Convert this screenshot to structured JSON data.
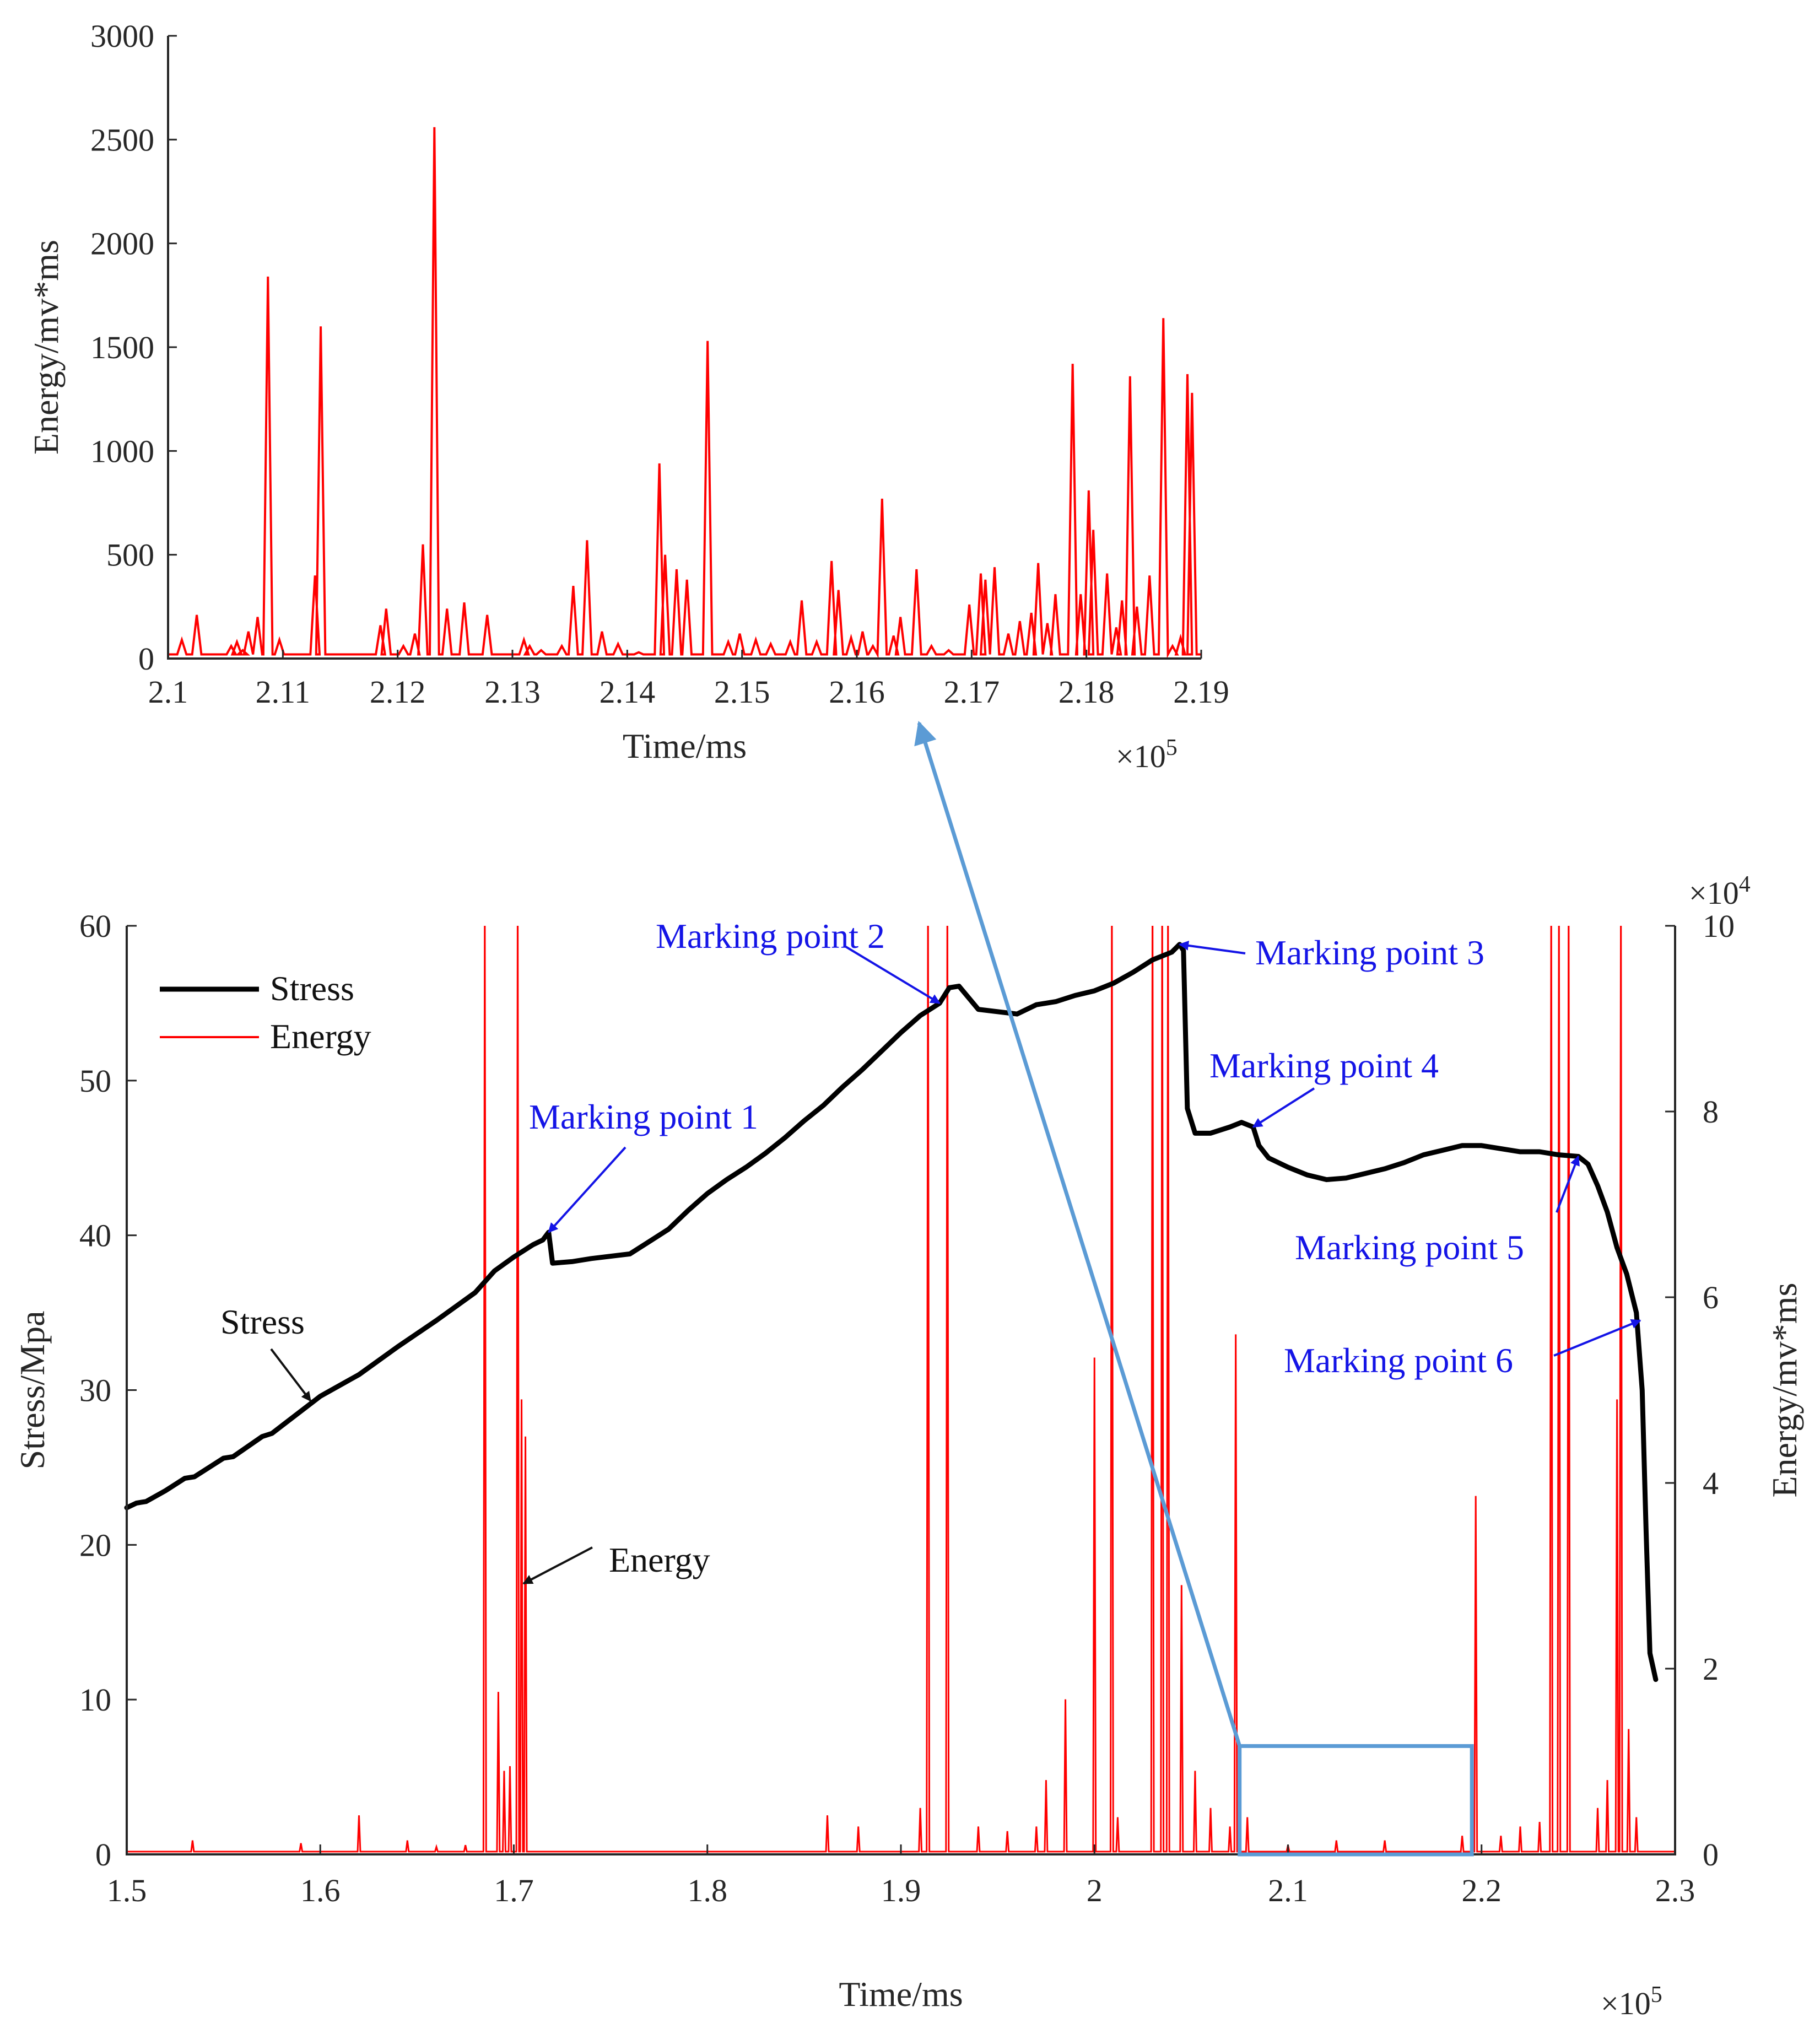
{
  "chart_data": [
    {
      "id": "inset",
      "type": "line",
      "xlabel": "Time/ms",
      "ylabel": "Energy/mv*ms",
      "x_multiplier": "×10",
      "x_multiplier_exp": "5",
      "xlim": [
        2.1,
        2.19
      ],
      "ylim": [
        0,
        3000
      ],
      "x_ticks": [
        "2.1",
        "2.11",
        "2.12",
        "2.13",
        "2.14",
        "2.15",
        "2.16",
        "2.17",
        "2.18",
        "2.19"
      ],
      "y_ticks": [
        "0",
        "500",
        "1000",
        "1500",
        "2000",
        "2500",
        "3000"
      ],
      "series": [
        {
          "name": "Energy",
          "color": "#ff0000",
          "baseline": 20,
          "peaks": [
            [
              2.1012,
              90
            ],
            [
              2.1025,
              210
            ],
            [
              2.1055,
              60
            ],
            [
              2.106,
              80
            ],
            [
              2.1065,
              40
            ],
            [
              2.107,
              130
            ],
            [
              2.1078,
              200
            ],
            [
              2.1087,
              1840
            ],
            [
              2.1097,
              90
            ],
            [
              2.1128,
              400
            ],
            [
              2.1133,
              1600
            ],
            [
              2.1185,
              160
            ],
            [
              2.119,
              240
            ],
            [
              2.1205,
              60
            ],
            [
              2.1215,
              120
            ],
            [
              2.1222,
              550
            ],
            [
              2.1232,
              2560
            ],
            [
              2.1243,
              240
            ],
            [
              2.1258,
              270
            ],
            [
              2.1278,
              210
            ],
            [
              2.131,
              90
            ],
            [
              2.1315,
              60
            ],
            [
              2.1325,
              40
            ],
            [
              2.1343,
              60
            ],
            [
              2.1353,
              350
            ],
            [
              2.1365,
              570
            ],
            [
              2.1378,
              130
            ],
            [
              2.1392,
              70
            ],
            [
              2.141,
              30
            ],
            [
              2.1428,
              940
            ],
            [
              2.1433,
              500
            ],
            [
              2.1443,
              430
            ],
            [
              2.1452,
              380
            ],
            [
              2.147,
              1530
            ],
            [
              2.1488,
              80
            ],
            [
              2.1498,
              120
            ],
            [
              2.1512,
              90
            ],
            [
              2.1525,
              70
            ],
            [
              2.1542,
              80
            ],
            [
              2.1552,
              280
            ],
            [
              2.1565,
              80
            ],
            [
              2.1578,
              470
            ],
            [
              2.1584,
              330
            ],
            [
              2.1595,
              100
            ],
            [
              2.1605,
              130
            ],
            [
              2.1614,
              60
            ],
            [
              2.1622,
              770
            ],
            [
              2.1632,
              110
            ],
            [
              2.1638,
              200
            ],
            [
              2.1652,
              430
            ],
            [
              2.1665,
              60
            ],
            [
              2.168,
              40
            ],
            [
              2.1698,
              260
            ],
            [
              2.1708,
              410
            ],
            [
              2.1712,
              380
            ],
            [
              2.172,
              440
            ],
            [
              2.1732,
              120
            ],
            [
              2.1742,
              180
            ],
            [
              2.1752,
              220
            ],
            [
              2.1758,
              460
            ],
            [
              2.1766,
              170
            ],
            [
              2.1773,
              310
            ],
            [
              2.1788,
              1420
            ],
            [
              2.1795,
              310
            ],
            [
              2.1802,
              810
            ],
            [
              2.1806,
              620
            ],
            [
              2.1818,
              410
            ],
            [
              2.1826,
              150
            ],
            [
              2.1831,
              280
            ],
            [
              2.1838,
              1360
            ],
            [
              2.1844,
              250
            ],
            [
              2.1855,
              400
            ],
            [
              2.1867,
              1640
            ],
            [
              2.1875,
              60
            ],
            [
              2.1882,
              100
            ],
            [
              2.1888,
              1370
            ],
            [
              2.1892,
              1280
            ]
          ]
        }
      ]
    },
    {
      "id": "main",
      "type": "line",
      "xlabel": "Time/ms",
      "ylabel_left": "Stress/Mpa",
      "ylabel_right": "Energy/mv*ms",
      "x_multiplier": "×10",
      "x_multiplier_exp": "5",
      "y_right_multiplier": "×10",
      "y_right_multiplier_exp": "4",
      "xlim": [
        1.5,
        2.3
      ],
      "ylim_left": [
        0,
        60
      ],
      "ylim_right": [
        0,
        10
      ],
      "x_ticks": [
        "1.5",
        "1.6",
        "1.7",
        "1.8",
        "1.9",
        "2",
        "2.1",
        "2.2",
        "2.3"
      ],
      "y_left_ticks": [
        "0",
        "10",
        "20",
        "30",
        "40",
        "50",
        "60"
      ],
      "y_right_ticks": [
        "0",
        "2",
        "4",
        "6",
        "8",
        "10"
      ],
      "legend": [
        {
          "label": "Stress",
          "color": "#000000"
        },
        {
          "label": "Energy",
          "color": "#ff0000"
        }
      ],
      "series": [
        {
          "name": "Stress",
          "color": "#000000",
          "axis": "left",
          "points": [
            [
              1.5,
              22.4
            ],
            [
              1.505,
              22.7
            ],
            [
              1.51,
              22.8
            ],
            [
              1.52,
              23.5
            ],
            [
              1.53,
              24.3
            ],
            [
              1.535,
              24.4
            ],
            [
              1.55,
              25.6
            ],
            [
              1.555,
              25.7
            ],
            [
              1.57,
              27.0
            ],
            [
              1.575,
              27.2
            ],
            [
              1.6,
              29.6
            ],
            [
              1.62,
              31.0
            ],
            [
              1.64,
              32.8
            ],
            [
              1.66,
              34.5
            ],
            [
              1.67,
              35.4
            ],
            [
              1.68,
              36.3
            ],
            [
              1.69,
              37.7
            ],
            [
              1.7,
              38.6
            ],
            [
              1.71,
              39.4
            ],
            [
              1.715,
              39.7
            ],
            [
              1.718,
              40.2
            ],
            [
              1.72,
              38.2
            ],
            [
              1.73,
              38.3
            ],
            [
              1.74,
              38.5
            ],
            [
              1.76,
              38.8
            ],
            [
              1.77,
              39.6
            ],
            [
              1.78,
              40.4
            ],
            [
              1.79,
              41.6
            ],
            [
              1.8,
              42.7
            ],
            [
              1.81,
              43.6
            ],
            [
              1.82,
              44.4
            ],
            [
              1.83,
              45.3
            ],
            [
              1.84,
              46.3
            ],
            [
              1.85,
              47.4
            ],
            [
              1.86,
              48.4
            ],
            [
              1.87,
              49.6
            ],
            [
              1.88,
              50.7
            ],
            [
              1.89,
              51.9
            ],
            [
              1.9,
              53.1
            ],
            [
              1.91,
              54.2
            ],
            [
              1.92,
              55.0
            ],
            [
              1.925,
              56.0
            ],
            [
              1.93,
              56.1
            ],
            [
              1.94,
              54.6
            ],
            [
              1.96,
              54.3
            ],
            [
              1.97,
              54.9
            ],
            [
              1.98,
              55.1
            ],
            [
              1.99,
              55.5
            ],
            [
              2.0,
              55.8
            ],
            [
              2.01,
              56.3
            ],
            [
              2.02,
              57.0
            ],
            [
              2.03,
              57.8
            ],
            [
              2.04,
              58.3
            ],
            [
              2.044,
              58.8
            ],
            [
              2.046,
              58.4
            ],
            [
              2.048,
              48.2
            ],
            [
              2.052,
              46.6
            ],
            [
              2.06,
              46.6
            ],
            [
              2.07,
              47.0
            ],
            [
              2.076,
              47.3
            ],
            [
              2.082,
              47.0
            ],
            [
              2.085,
              45.8
            ],
            [
              2.09,
              45.0
            ],
            [
              2.1,
              44.4
            ],
            [
              2.11,
              43.9
            ],
            [
              2.12,
              43.6
            ],
            [
              2.13,
              43.7
            ],
            [
              2.14,
              44.0
            ],
            [
              2.15,
              44.3
            ],
            [
              2.16,
              44.7
            ],
            [
              2.17,
              45.2
            ],
            [
              2.18,
              45.5
            ],
            [
              2.19,
              45.8
            ],
            [
              2.2,
              45.8
            ],
            [
              2.21,
              45.6
            ],
            [
              2.22,
              45.4
            ],
            [
              2.23,
              45.4
            ],
            [
              2.24,
              45.2
            ],
            [
              2.25,
              45.1
            ],
            [
              2.255,
              44.6
            ],
            [
              2.26,
              43.2
            ],
            [
              2.265,
              41.5
            ],
            [
              2.27,
              39.2
            ],
            [
              2.275,
              37.5
            ],
            [
              2.28,
              35.0
            ],
            [
              2.283,
              30.0
            ],
            [
              2.285,
              21.0
            ],
            [
              2.287,
              13.0
            ],
            [
              2.29,
              11.3
            ]
          ]
        },
        {
          "name": "Energy",
          "color": "#ff0000",
          "axis": "right",
          "baseline": 0.03,
          "peaks": [
            [
              1.534,
              0.15
            ],
            [
              1.59,
              0.12
            ],
            [
              1.62,
              0.42
            ],
            [
              1.645,
              0.15
            ],
            [
              1.66,
              0.08
            ],
            [
              1.675,
              0.1
            ],
            [
              1.685,
              10.5
            ],
            [
              1.692,
              1.75
            ],
            [
              1.695,
              0.9
            ],
            [
              1.698,
              0.95
            ],
            [
              1.702,
              10.5
            ],
            [
              1.704,
              4.9
            ],
            [
              1.706,
              4.5
            ],
            [
              1.862,
              0.42
            ],
            [
              1.878,
              0.3
            ],
            [
              1.91,
              0.5
            ],
            [
              1.914,
              10.5
            ],
            [
              1.924,
              10.5
            ],
            [
              1.94,
              0.3
            ],
            [
              1.955,
              0.25
            ],
            [
              1.97,
              0.3
            ],
            [
              1.975,
              0.8
            ],
            [
              1.985,
              1.67
            ],
            [
              2.0,
              5.35
            ],
            [
              2.009,
              10.5
            ],
            [
              2.012,
              0.4
            ],
            [
              2.03,
              10.5
            ],
            [
              2.035,
              10.5
            ],
            [
              2.038,
              10.5
            ],
            [
              2.045,
              2.9
            ],
            [
              2.052,
              0.9
            ],
            [
              2.06,
              0.5
            ],
            [
              2.07,
              0.3
            ],
            [
              2.073,
              5.6
            ],
            [
              2.079,
              0.4
            ],
            [
              2.1,
              0.1
            ],
            [
              2.125,
              0.15
            ],
            [
              2.15,
              0.15
            ],
            [
              2.19,
              0.2
            ],
            [
              2.197,
              3.86
            ],
            [
              2.21,
              0.2
            ],
            [
              2.22,
              0.3
            ],
            [
              2.23,
              0.35
            ],
            [
              2.236,
              10.5
            ],
            [
              2.24,
              10.5
            ],
            [
              2.245,
              10.5
            ],
            [
              2.26,
              0.5
            ],
            [
              2.265,
              0.8
            ],
            [
              2.27,
              4.9
            ],
            [
              2.272,
              10.5
            ],
            [
              2.276,
              1.35
            ],
            [
              2.28,
              0.4
            ]
          ]
        }
      ],
      "annotations": [
        {
          "label": "Marking point 1",
          "target": [
            1.718,
            40.2
          ]
        },
        {
          "label": "Marking point 2",
          "target": [
            1.92,
            55.0
          ]
        },
        {
          "label": "Marking point 3",
          "target": [
            2.044,
            58.8
          ]
        },
        {
          "label": "Marking point 4",
          "target": [
            2.082,
            47.0
          ]
        },
        {
          "label": "Marking point 5",
          "target": [
            2.25,
            45.1
          ]
        },
        {
          "label": "Marking point 6",
          "target": [
            2.282,
            34.5
          ]
        },
        {
          "label": "Stress",
          "target": [
            1.595,
            29.3
          ]
        },
        {
          "label": "Energy",
          "target": [
            1.705,
            17.5
          ]
        }
      ],
      "zoom_box": {
        "x_range": [
          2.075,
          2.195
        ],
        "y_range": [
          0,
          7
        ]
      }
    }
  ]
}
